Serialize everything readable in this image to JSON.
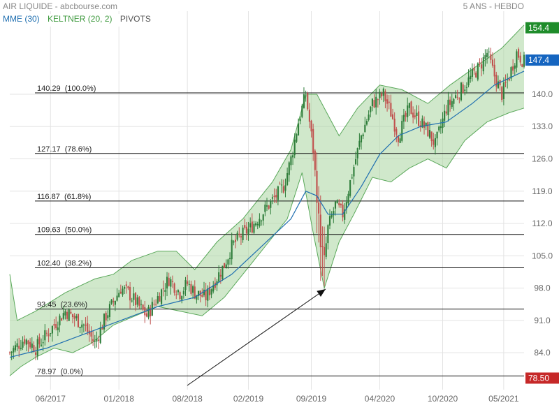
{
  "header": {
    "source_title": "AIR LIQUIDE - abcbourse.com",
    "period_label": "5 ANS - HEBDO"
  },
  "legend": {
    "ema_label": "MME (30)",
    "keltner_label": "KELTNER (20, 2)",
    "pivots_label": "PIVOTS"
  },
  "colors": {
    "up_candle": "#2e7d3a",
    "down_candle": "#c0504d",
    "ema_line": "#1f6fb0",
    "keltner_fill": "#a9d6a0",
    "keltner_line": "#5aa85a",
    "last_price_bg": "#1565c0",
    "max_bg": "#1e8c2a",
    "min_bg": "#c62828",
    "grid": "#e3e3e3"
  },
  "chart_data": {
    "type": "candlestick",
    "y_axis": {
      "min": 76,
      "max": 158,
      "ticks": [
        84.0,
        91.0,
        98.0,
        105.0,
        112.0,
        119.0,
        126.0,
        133.0,
        140.0
      ],
      "side": "right"
    },
    "x_axis": {
      "ticks": [
        "06/2017",
        "01/2018",
        "08/2018",
        "02/2019",
        "09/2019",
        "04/2020",
        "10/2020",
        "05/2021"
      ]
    },
    "markers": {
      "max_value": "154.4",
      "last_value": "147.4",
      "min_value": "78.50"
    },
    "fibonacci_levels": [
      {
        "label": "140.29  (100.0%)",
        "value": 140.29
      },
      {
        "label": "127.17  (78.6%)",
        "value": 127.17
      },
      {
        "label": "116.87  (61.8%)",
        "value": 116.87
      },
      {
        "label": "109.63  (50.0%)",
        "value": 109.63
      },
      {
        "label": "102.40  (38.2%)",
        "value": 102.4
      },
      {
        "label": "93.45  (23.6%)",
        "value": 93.45
      },
      {
        "label": "78.97  (0.0%)",
        "value": 78.97
      }
    ],
    "close_path": [
      [
        0,
        84
      ],
      [
        8,
        87
      ],
      [
        14,
        85
      ],
      [
        20,
        88
      ],
      [
        30,
        93
      ],
      [
        40,
        90
      ],
      [
        46,
        86
      ],
      [
        52,
        92
      ],
      [
        60,
        98
      ],
      [
        64,
        97
      ],
      [
        70,
        94
      ],
      [
        74,
        92
      ],
      [
        80,
        96
      ],
      [
        86,
        100
      ],
      [
        92,
        97
      ],
      [
        96,
        99
      ],
      [
        100,
        97
      ],
      [
        106,
        96
      ],
      [
        110,
        99
      ],
      [
        116,
        103
      ],
      [
        120,
        107
      ],
      [
        124,
        109
      ],
      [
        130,
        111
      ],
      [
        136,
        114
      ],
      [
        142,
        117
      ],
      [
        148,
        120
      ],
      [
        152,
        126
      ],
      [
        156,
        134
      ],
      [
        160,
        140
      ],
      [
        164,
        128
      ],
      [
        168,
        108
      ],
      [
        170,
        104
      ],
      [
        172,
        111
      ],
      [
        176,
        116
      ],
      [
        180,
        114
      ],
      [
        184,
        121
      ],
      [
        190,
        131
      ],
      [
        196,
        138
      ],
      [
        202,
        140
      ],
      [
        206,
        136
      ],
      [
        210,
        131
      ],
      [
        216,
        137
      ],
      [
        222,
        134
      ],
      [
        226,
        132
      ],
      [
        230,
        129
      ],
      [
        236,
        137
      ],
      [
        242,
        140
      ],
      [
        248,
        143
      ],
      [
        254,
        146
      ],
      [
        258,
        149
      ],
      [
        262,
        144
      ],
      [
        266,
        140
      ],
      [
        270,
        144
      ],
      [
        274,
        149
      ],
      [
        278,
        147
      ]
    ],
    "ema_path": [
      [
        0,
        83
      ],
      [
        20,
        85
      ],
      [
        40,
        88
      ],
      [
        60,
        91
      ],
      [
        80,
        94
      ],
      [
        100,
        96
      ],
      [
        120,
        101
      ],
      [
        136,
        107
      ],
      [
        152,
        113
      ],
      [
        160,
        119
      ],
      [
        166,
        118
      ],
      [
        172,
        114
      ],
      [
        180,
        114
      ],
      [
        190,
        120
      ],
      [
        200,
        127
      ],
      [
        210,
        131
      ],
      [
        222,
        133
      ],
      [
        236,
        134
      ],
      [
        250,
        138
      ],
      [
        262,
        142
      ],
      [
        278,
        145
      ]
    ],
    "keltner_upper": [
      [
        0,
        101
      ],
      [
        4,
        91
      ],
      [
        14,
        93
      ],
      [
        22,
        95
      ],
      [
        30,
        97
      ],
      [
        46,
        100
      ],
      [
        56,
        101
      ],
      [
        66,
        104
      ],
      [
        80,
        106
      ],
      [
        90,
        106
      ],
      [
        100,
        102
      ],
      [
        112,
        108
      ],
      [
        126,
        113
      ],
      [
        142,
        121
      ],
      [
        152,
        128
      ],
      [
        160,
        140
      ],
      [
        166,
        140
      ],
      [
        178,
        131
      ],
      [
        188,
        137
      ],
      [
        200,
        142
      ],
      [
        212,
        141
      ],
      [
        226,
        138
      ],
      [
        238,
        142
      ],
      [
        252,
        146
      ],
      [
        266,
        150
      ],
      [
        278,
        155
      ]
    ],
    "keltner_lower": [
      [
        0,
        79
      ],
      [
        6,
        81
      ],
      [
        14,
        83
      ],
      [
        24,
        85
      ],
      [
        34,
        84
      ],
      [
        44,
        86
      ],
      [
        56,
        90
      ],
      [
        68,
        92
      ],
      [
        80,
        94
      ],
      [
        92,
        93
      ],
      [
        104,
        92
      ],
      [
        116,
        96
      ],
      [
        128,
        102
      ],
      [
        140,
        108
      ],
      [
        150,
        113
      ],
      [
        158,
        123
      ],
      [
        164,
        110
      ],
      [
        170,
        98
      ],
      [
        178,
        108
      ],
      [
        186,
        114
      ],
      [
        196,
        122
      ],
      [
        206,
        121
      ],
      [
        216,
        124
      ],
      [
        226,
        126
      ],
      [
        236,
        124
      ],
      [
        246,
        130
      ],
      [
        258,
        134
      ],
      [
        270,
        136
      ],
      [
        278,
        137
      ]
    ]
  }
}
